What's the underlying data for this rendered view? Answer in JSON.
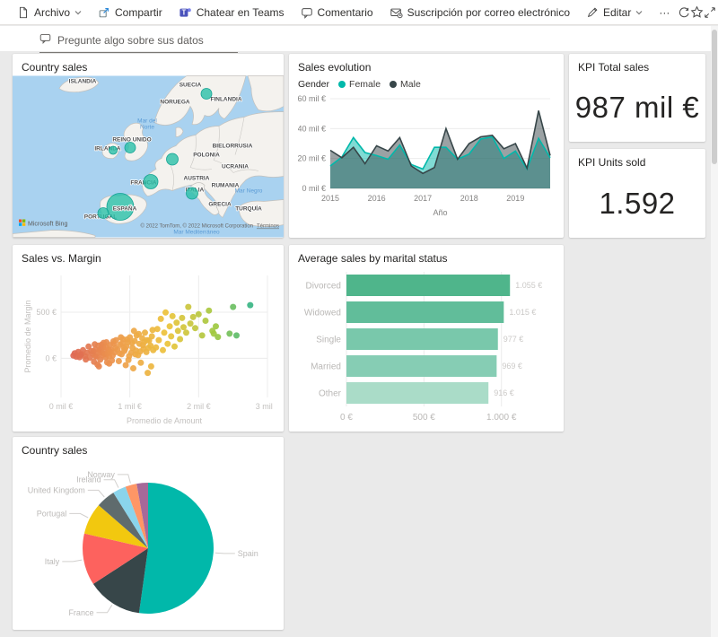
{
  "toolbar": {
    "file": "Archivo",
    "share": "Compartir",
    "teams": "Chatear en Teams",
    "comment": "Comentario",
    "subscribe": "Suscripción por correo electrónico",
    "edit": "Editar",
    "more": "···"
  },
  "qna": {
    "placeholder": "Pregunte algo sobre sus datos"
  },
  "chart_data": [
    {
      "id": "map",
      "type": "map",
      "title": "Country sales",
      "bubble_color": "#29bfa7",
      "bubbles": [
        {
          "country": "Norway",
          "x": 216,
          "y": 20,
          "r": 6
        },
        {
          "country": "United Kingdom",
          "x": 131,
          "y": 80,
          "r": 6
        },
        {
          "country": "Ireland",
          "x": 112,
          "y": 83,
          "r": 4.5
        },
        {
          "country": "Germany",
          "x": 178,
          "y": 93,
          "r": 6.5
        },
        {
          "country": "France",
          "x": 154,
          "y": 118,
          "r": 8
        },
        {
          "country": "Italy",
          "x": 200,
          "y": 131,
          "r": 6.5
        },
        {
          "country": "Spain",
          "x": 120,
          "y": 146,
          "r": 15
        },
        {
          "country": "Portugal",
          "x": 101,
          "y": 153,
          "r": 6
        }
      ],
      "labels": [
        {
          "t": "ISLANDIA",
          "x": 78,
          "y": 8
        },
        {
          "t": "SUECIA",
          "x": 198,
          "y": 12
        },
        {
          "t": "NORUEGA",
          "x": 181,
          "y": 31
        },
        {
          "t": "FINLANDIA",
          "x": 238,
          "y": 28
        },
        {
          "t": "REINO UNIDO",
          "x": 133,
          "y": 73
        },
        {
          "t": "IRLANDA",
          "x": 106,
          "y": 83
        },
        {
          "t": "BIELORRUSIA",
          "x": 245,
          "y": 80
        },
        {
          "t": "POLONIA",
          "x": 216,
          "y": 90
        },
        {
          "t": "UCRANIA",
          "x": 248,
          "y": 103
        },
        {
          "t": "FRANCIA",
          "x": 146,
          "y": 121
        },
        {
          "t": "AUSTRIA",
          "x": 205,
          "y": 116
        },
        {
          "t": "RUMANIA",
          "x": 237,
          "y": 124
        },
        {
          "t": "ITALIA",
          "x": 203,
          "y": 129
        },
        {
          "t": "ESPAÑA",
          "x": 125,
          "y": 150
        },
        {
          "t": "GRECIA",
          "x": 231,
          "y": 145
        },
        {
          "t": "TURQUÍA",
          "x": 263,
          "y": 150
        },
        {
          "t": "PORTUGAL",
          "x": 98,
          "y": 159
        }
      ],
      "sea_labels": [
        {
          "t": "Mar del",
          "x": 150,
          "y": 52
        },
        {
          "t": "Norte",
          "x": 150,
          "y": 59
        },
        {
          "t": "Mar Negro",
          "x": 263,
          "y": 130
        },
        {
          "t": "Mar Mediterráneo",
          "x": 205,
          "y": 176
        }
      ],
      "bing": "Microsoft Bing",
      "attribution": "© 2022 TomTom, © 2022 Microsoft Corporation",
      "terms": "Términos"
    },
    {
      "id": "sales-evolution",
      "type": "area",
      "title": "Sales evolution",
      "legend_title": "Gender",
      "xlabel": "Año",
      "x_years": [
        2015,
        2016,
        2017,
        2018,
        2019
      ],
      "points_per_year": 4,
      "ylim": [
        0,
        60
      ],
      "ytick_values": [
        0,
        20,
        40,
        60
      ],
      "yticks": [
        "0 mil €",
        "20 mil €",
        "40 mil €",
        "60 mil €"
      ],
      "series": [
        {
          "name": "Female",
          "color": "#01B8AA",
          "values": [
            15,
            21,
            34,
            24,
            22,
            19.5,
            29,
            16,
            13,
            27.5,
            27.5,
            19.5,
            23,
            33,
            34.5,
            20,
            25,
            13,
            33.5,
            20.5
          ]
        },
        {
          "name": "Male",
          "color": "#374649",
          "values": [
            25.5,
            20.5,
            27.5,
            16.5,
            28.5,
            25,
            34,
            15,
            10,
            14,
            40,
            19.5,
            30,
            34.5,
            35.5,
            26.5,
            30,
            13.5,
            52,
            22
          ]
        }
      ]
    },
    {
      "id": "kpi-total-sales",
      "type": "card",
      "title": "KPI Total sales",
      "value": "987 mil €"
    },
    {
      "id": "kpi-units-sold",
      "type": "card",
      "title": "KPI Units sold",
      "value": "1.592"
    },
    {
      "id": "sales-vs-margin",
      "type": "scatter",
      "title": "Sales vs. Margin",
      "xlabel": "Promedio de Amount",
      "ylabel": "Promedio de Margin",
      "xlim": [
        0,
        3
      ],
      "ylim": [
        -425,
        900
      ],
      "xtick_values": [
        0,
        1,
        2,
        3
      ],
      "xticks": [
        "0 mil €",
        "1 mil €",
        "2 mil €",
        "3 mil €"
      ],
      "ytick_values": [
        0,
        500
      ],
      "yticks": [
        "0 €",
        "500 €"
      ],
      "color_stops": [
        "#DB5B57",
        "#EE9F4B",
        "#EDC33A",
        "#A0C940",
        "#2FB38B"
      ],
      "points": [
        [
          0.18,
          30
        ],
        [
          0.2,
          55
        ],
        [
          0.22,
          18
        ],
        [
          0.25,
          70
        ],
        [
          0.27,
          12
        ],
        [
          0.3,
          45
        ],
        [
          0.32,
          88
        ],
        [
          0.35,
          24
        ],
        [
          0.38,
          60
        ],
        [
          0.4,
          128
        ],
        [
          0.42,
          8
        ],
        [
          0.44,
          78
        ],
        [
          0.36,
          -12
        ],
        [
          0.28,
          36
        ],
        [
          0.46,
          50
        ],
        [
          0.47,
          76
        ],
        [
          0.48,
          -38
        ],
        [
          0.49,
          152
        ],
        [
          0.5,
          95
        ],
        [
          0.5,
          24
        ],
        [
          0.52,
          20
        ],
        [
          0.53,
          -68
        ],
        [
          0.54,
          138
        ],
        [
          0.55,
          60
        ],
        [
          0.55,
          -88
        ],
        [
          0.56,
          86
        ],
        [
          0.57,
          -14
        ],
        [
          0.58,
          104
        ],
        [
          0.59,
          148
        ],
        [
          0.6,
          35
        ],
        [
          0.6,
          58
        ],
        [
          0.61,
          124
        ],
        [
          0.62,
          168
        ],
        [
          0.63,
          74
        ],
        [
          0.64,
          44
        ],
        [
          0.65,
          10
        ],
        [
          0.66,
          120
        ],
        [
          0.66,
          174
        ],
        [
          0.67,
          -44
        ],
        [
          0.68,
          56
        ],
        [
          0.69,
          94
        ],
        [
          0.7,
          -58
        ],
        [
          0.7,
          20
        ],
        [
          0.71,
          144
        ],
        [
          0.72,
          70
        ],
        [
          0.73,
          90
        ],
        [
          0.74,
          -24
        ],
        [
          0.75,
          30
        ],
        [
          0.76,
          184
        ],
        [
          0.77,
          158
        ],
        [
          0.78,
          64
        ],
        [
          0.79,
          114
        ],
        [
          0.8,
          198
        ],
        [
          0.82,
          94
        ],
        [
          0.84,
          -30
        ],
        [
          0.85,
          54
        ],
        [
          0.86,
          148
        ],
        [
          0.87,
          228
        ],
        [
          0.88,
          44
        ],
        [
          0.89,
          164
        ],
        [
          0.9,
          208
        ],
        [
          0.91,
          118
        ],
        [
          0.92,
          80
        ],
        [
          0.93,
          100
        ],
        [
          0.94,
          -74
        ],
        [
          0.95,
          130
        ],
        [
          0.96,
          204
        ],
        [
          0.97,
          174
        ],
        [
          0.98,
          -18
        ],
        [
          0.99,
          24
        ],
        [
          1.0,
          228
        ],
        [
          1.02,
          60
        ],
        [
          1.03,
          168
        ],
        [
          1.04,
          114
        ],
        [
          1.05,
          -108
        ],
        [
          1.06,
          298
        ],
        [
          1.07,
          188
        ],
        [
          1.08,
          44
        ],
        [
          1.09,
          84
        ],
        [
          1.1,
          248
        ],
        [
          1.12,
          34
        ],
        [
          1.13,
          264
        ],
        [
          1.14,
          158
        ],
        [
          1.15,
          74
        ],
        [
          1.16,
          -48
        ],
        [
          1.18,
          218
        ],
        [
          1.19,
          144
        ],
        [
          1.2,
          104
        ],
        [
          1.21,
          178
        ],
        [
          1.22,
          278
        ],
        [
          1.24,
          68
        ],
        [
          1.25,
          198
        ],
        [
          1.26,
          -158
        ],
        [
          1.27,
          114
        ],
        [
          1.28,
          194
        ],
        [
          1.3,
          138
        ],
        [
          1.31,
          -88
        ],
        [
          1.32,
          238
        ],
        [
          1.33,
          308
        ],
        [
          1.34,
          88
        ],
        [
          1.38,
          118
        ],
        [
          1.4,
          318
        ],
        [
          1.42,
          198
        ],
        [
          1.45,
          428
        ],
        [
          1.48,
          88
        ],
        [
          1.5,
          278
        ],
        [
          1.52,
          498
        ],
        [
          1.55,
          158
        ],
        [
          1.58,
          348
        ],
        [
          1.6,
          238
        ],
        [
          1.62,
          458
        ],
        [
          1.65,
          128
        ],
        [
          1.68,
          388
        ],
        [
          1.7,
          298
        ],
        [
          1.73,
          208
        ],
        [
          1.76,
          438
        ],
        [
          1.78,
          338
        ],
        [
          1.82,
          278
        ],
        [
          1.85,
          558
        ],
        [
          1.88,
          378
        ],
        [
          1.92,
          448
        ],
        [
          1.95,
          328
        ],
        [
          2.0,
          478
        ],
        [
          2.05,
          248
        ],
        [
          2.1,
          408
        ],
        [
          2.15,
          518
        ],
        [
          2.2,
          298
        ],
        [
          2.22,
          268
        ],
        [
          2.25,
          348
        ],
        [
          2.28,
          232
        ],
        [
          2.45,
          268
        ],
        [
          2.5,
          558
        ],
        [
          2.55,
          248
        ],
        [
          2.75,
          578
        ]
      ]
    },
    {
      "id": "avg-sales-marital",
      "type": "bar",
      "title": "Average sales by marital status",
      "categories": [
        "Divorced",
        "Widowed",
        "Single",
        "Married",
        "Other"
      ],
      "values": [
        1055,
        1015,
        977,
        969,
        916
      ],
      "value_labels": [
        "1.055 €",
        "1.015 €",
        "977 €",
        "969 €",
        "916 €"
      ],
      "colors": [
        "#4fb58b",
        "#61bd9a",
        "#79c8ab",
        "#86cdb4",
        "#aadcc8"
      ],
      "xlim": [
        0,
        1100
      ],
      "xtick_values": [
        0,
        500,
        1000
      ],
      "xticks": [
        "0 €",
        "500 €",
        "1.000 €"
      ]
    },
    {
      "id": "country-sales-pie",
      "type": "pie",
      "title": "Country sales",
      "slices": [
        {
          "label": "Spain",
          "value": 52.2,
          "color": "#01B8AA"
        },
        {
          "label": "France",
          "value": 13.6,
          "color": "#374649"
        },
        {
          "label": "Italy",
          "value": 12.8,
          "color": "#FD625E"
        },
        {
          "label": "Portugal",
          "value": 7.8,
          "color": "#F2C80F"
        },
        {
          "label": "United Kingdom",
          "value": 4.7,
          "color": "#5F6B6D"
        },
        {
          "label": "Ireland",
          "value": 3.3,
          "color": "#8AD4EB"
        },
        {
          "label": "Norway",
          "value": 2.8,
          "color": "#FE9666"
        },
        {
          "label": "",
          "value": 2.8,
          "color": "#A66999"
        }
      ]
    }
  ]
}
